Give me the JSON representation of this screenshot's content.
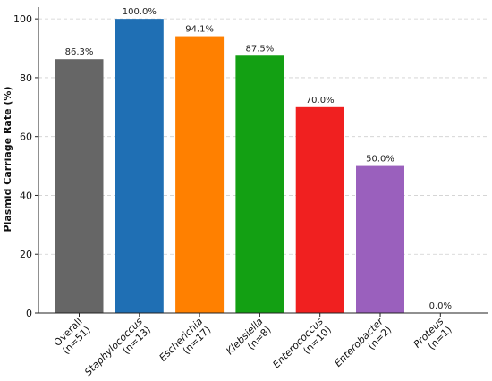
{
  "chart_data": {
    "type": "bar",
    "ylabel": "Plasmid Carriage Rate (%)",
    "xlabel": "",
    "ylim": [
      0,
      104
    ],
    "yticks": [
      0,
      20,
      40,
      60,
      80,
      100
    ],
    "grid": "y-dashed",
    "categories": [
      {
        "name": "Overall",
        "count": "(n=51)",
        "italic": false
      },
      {
        "name": "Staphylococcus",
        "count": "(n=13)",
        "italic": true
      },
      {
        "name": "Escherichia",
        "count": "(n=17)",
        "italic": true
      },
      {
        "name": "Klebsiella",
        "count": "(n=8)",
        "italic": true
      },
      {
        "name": "Enterococcus",
        "count": "(n=10)",
        "italic": true
      },
      {
        "name": "Enterobacter",
        "count": "(n=2)",
        "italic": true
      },
      {
        "name": "Proteus",
        "count": "(n=1)",
        "italic": true
      }
    ],
    "values": [
      86.3,
      100.0,
      94.1,
      87.5,
      70.0,
      50.0,
      0.0
    ],
    "value_labels": [
      "86.3%",
      "100.0%",
      "94.1%",
      "87.5%",
      "70.0%",
      "50.0%",
      "0.0%"
    ],
    "colors": [
      "#666666",
      "#1f6fb4",
      "#ff8000",
      "#13a013",
      "#f02020",
      "#9a60bd",
      "#8c564b"
    ]
  }
}
